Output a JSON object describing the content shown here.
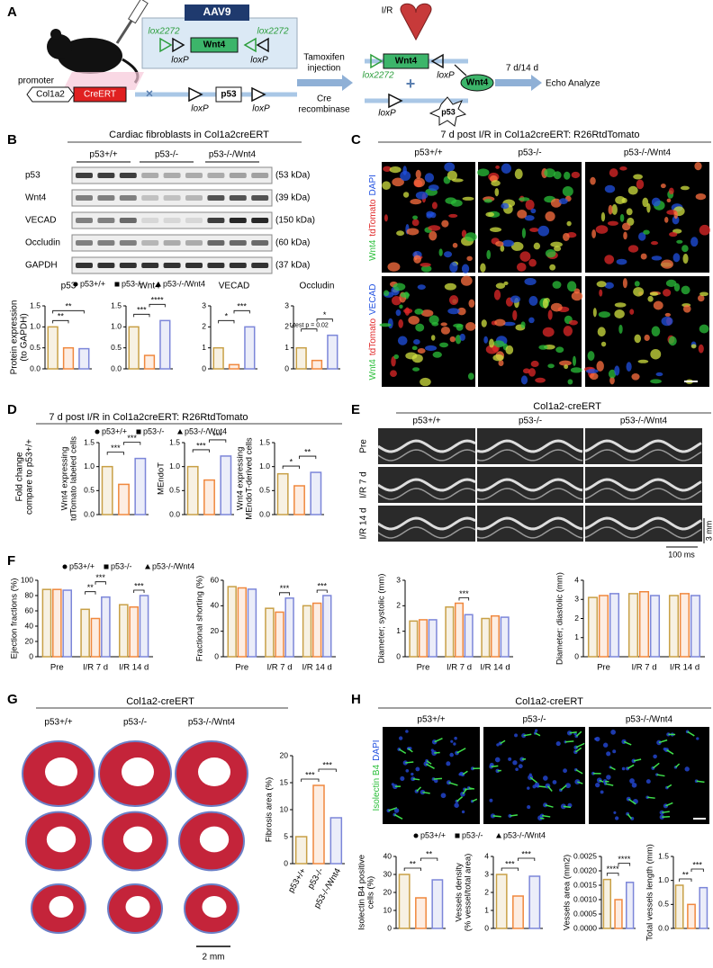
{
  "panels": {
    "A": {
      "label": "A",
      "vector": "AAV9",
      "lox_left": "lox2272",
      "lox_right": "lox2272",
      "gene": "Wnt4",
      "loxp_left": "loxP",
      "loxp_right": "loxP",
      "promoter": "promoter",
      "promoter_name": "Col1a2",
      "driver": "CreERT",
      "target": "p53",
      "target_loxp_left": "loxP",
      "target_loxp_right": "loxP",
      "treatment": [
        "Tamoxifen",
        "injection"
      ],
      "enzyme": [
        "Cre",
        "recombinase"
      ],
      "injury": "I/R",
      "result_lox": "lox2272",
      "result_gene": "Wnt4",
      "result_loxp": "loxP",
      "secreted": "Wnt4",
      "result_target_loxp": "loxP",
      "deleted": "p53",
      "timepoint": "7 d/14 d",
      "analysis": "Echo Analyze"
    },
    "B": {
      "label": "B",
      "title": "Cardiac fibroblasts in Col1a2creERT",
      "groups": [
        "p53+/+",
        "p53-/-",
        "p53-/-/Wnt4"
      ],
      "rows": [
        {
          "name": "p53",
          "size": "(53 kDa)"
        },
        {
          "name": "Wnt4",
          "size": "(39 kDa)"
        },
        {
          "name": "VECAD",
          "size": "(150 kDa)"
        },
        {
          "name": "Occludin",
          "size": "(60 kDa)"
        },
        {
          "name": "GAPDH",
          "size": "(37 kDa)"
        }
      ],
      "legend": [
        "p53+/+",
        "p53-/-",
        "p53-/-/Wnt4"
      ],
      "ylabel": [
        "Protein expression",
        "(to GAPDH)"
      ]
    },
    "C": {
      "label": "C",
      "title": "7 d post I/R in Col1a2creERT: R26RtdTomato",
      "columns": [
        "p53+/+",
        "p53-/-",
        "p53-/-/Wnt4"
      ],
      "row_labels": [
        [
          "Wnt4",
          "tdTomato",
          "DAPI"
        ],
        [
          "Wnt4",
          "tdTomato",
          "VECAD"
        ]
      ]
    },
    "D": {
      "label": "D",
      "title": "7 d post I/R in Col1a2creERT: R26RtdTomato",
      "legend": [
        "p53+/+",
        "p53-/-",
        "p53-/-/Wnt4"
      ],
      "ylabel": [
        "Fold change",
        "compare to p53+/+"
      ]
    },
    "E": {
      "label": "E",
      "title": "Col1a2-creERT",
      "columns": [
        "p53+/+",
        "p53-/-",
        "p53-/-/Wnt4"
      ],
      "rows": [
        "Pre",
        "I/R 7 d",
        "I/R 14 d"
      ],
      "scale_depth": "3 mm",
      "scale_time": "100 ms"
    },
    "F": {
      "label": "F",
      "legend": [
        "p53+/+",
        "p53-/-",
        "p53-/-/Wnt4"
      ]
    },
    "G": {
      "label": "G",
      "title": "Col1a2-creERT",
      "columns": [
        "p53+/+",
        "p53-/-",
        "p53-/-/Wnt4"
      ],
      "scale": "2 mm"
    },
    "H": {
      "label": "H",
      "title": "Col1a2-creERT",
      "columns": [
        "p53+/+",
        "p53-/-",
        "p53-/-/Wnt4"
      ],
      "stain": [
        "Isolectin B4",
        "DAPI"
      ],
      "legend": [
        "p53+/+",
        "p53-/-",
        "p53-/-/Wnt4"
      ]
    }
  },
  "chart_data": [
    {
      "type": "bar",
      "title": "p53",
      "categories": [
        null,
        null,
        null
      ],
      "values": [
        1.0,
        0.5,
        0.48
      ],
      "colors": [
        "#c8a046",
        "#f0883e",
        "#7c86d9"
      ],
      "ylim": [
        0,
        1.5
      ],
      "yticks": [
        {
          "value": 0,
          "label": "0.0"
        },
        0.5,
        {
          "value": 1,
          "label": "1.0"
        },
        1.5
      ],
      "annotations": [
        {
          "label": "**",
          "pair": [
            0,
            1
          ]
        },
        {
          "label": "**",
          "pair": [
            0,
            2
          ]
        }
      ]
    },
    {
      "type": "bar",
      "title": "Wnt4",
      "categories": [
        null,
        null,
        null
      ],
      "values": [
        1.0,
        0.32,
        1.15
      ],
      "colors": [
        "#c8a046",
        "#f0883e",
        "#7c86d9"
      ],
      "ylim": [
        0,
        1.5
      ],
      "yticks": [
        {
          "value": 0,
          "label": "0.0"
        },
        0.5,
        {
          "value": 1,
          "label": "1.0"
        },
        1.5
      ],
      "annotations": [
        {
          "label": "***",
          "pair": [
            0,
            1
          ]
        },
        {
          "label": "****",
          "pair": [
            1,
            2
          ]
        }
      ]
    },
    {
      "type": "bar",
      "title": "VECAD",
      "categories": [
        null,
        null,
        null
      ],
      "values": [
        1.0,
        0.2,
        2.0
      ],
      "colors": [
        "#c8a046",
        "#f0883e",
        "#7c86d9"
      ],
      "ylim": [
        0,
        3
      ],
      "yticks": [
        0,
        1,
        2,
        3
      ],
      "annotations": [
        {
          "label": "*",
          "pair": [
            0,
            1
          ]
        },
        {
          "label": "***",
          "pair": [
            1,
            2
          ]
        }
      ]
    },
    {
      "type": "bar",
      "title": "Occludin",
      "categories": [
        null,
        null,
        null
      ],
      "values": [
        1.0,
        0.4,
        1.6
      ],
      "colors": [
        "#c8a046",
        "#f0883e",
        "#7c86d9"
      ],
      "ylim": [
        0,
        3
      ],
      "yticks": [
        0,
        1,
        2,
        3
      ],
      "annotations": [
        {
          "label": "t-test p = 0.02",
          "pair": [
            0,
            1
          ]
        },
        {
          "label": "*",
          "pair": [
            1,
            2
          ]
        }
      ]
    },
    {
      "type": "bar",
      "ylabel": [
        "Wnt4 expressing",
        "tdTomato labeled cells"
      ],
      "categories": [
        null,
        null,
        null
      ],
      "values": [
        1.0,
        0.63,
        1.17
      ],
      "colors": [
        "#c8a046",
        "#f0883e",
        "#7c86d9"
      ],
      "ylim": [
        0,
        1.5
      ],
      "yticks": [
        {
          "value": 0,
          "label": "0.0"
        },
        0.5,
        {
          "value": 1,
          "label": "1.0"
        },
        1.5
      ],
      "annotations": [
        {
          "label": "***",
          "pair": [
            0,
            1
          ]
        },
        {
          "label": "***",
          "pair": [
            1,
            2
          ]
        }
      ]
    },
    {
      "type": "bar",
      "ylabel": "MEndoT",
      "categories": [
        null,
        null,
        null
      ],
      "values": [
        1.0,
        0.72,
        1.22
      ],
      "colors": [
        "#c8a046",
        "#f0883e",
        "#7c86d9"
      ],
      "ylim": [
        0,
        1.5
      ],
      "yticks": [
        {
          "value": 0,
          "label": "0.0"
        },
        0.5,
        {
          "value": 1,
          "label": "1.0"
        },
        1.5
      ],
      "annotations": [
        {
          "label": "***",
          "pair": [
            0,
            1
          ]
        },
        {
          "label": "***",
          "pair": [
            1,
            2
          ]
        }
      ]
    },
    {
      "type": "bar",
      "ylabel": [
        "Wnt4 expressing",
        "MEndoT-derived cells"
      ],
      "categories": [
        null,
        null,
        null
      ],
      "values": [
        0.85,
        0.6,
        0.88
      ],
      "colors": [
        "#c8a046",
        "#f0883e",
        "#7c86d9"
      ],
      "ylim": [
        0,
        1.5
      ],
      "yticks": [
        {
          "value": 0,
          "label": "0.0"
        },
        0.5,
        {
          "value": 1,
          "label": "1.0"
        },
        1.5
      ],
      "annotations": [
        {
          "label": "*",
          "pair": [
            0,
            1
          ]
        },
        {
          "label": "**",
          "pair": [
            1,
            2
          ]
        }
      ]
    },
    {
      "type": "bar",
      "ylabel": "Ejection fractions (%)",
      "categories": [
        "Pre",
        "I/R 7 d",
        "I/R 14 d"
      ],
      "series": [
        {
          "color": "#c8a046",
          "values": [
            88,
            62,
            68
          ]
        },
        {
          "color": "#f0883e",
          "values": [
            88,
            50,
            65
          ]
        },
        {
          "color": "#7c86d9",
          "values": [
            87,
            78,
            80
          ]
        }
      ],
      "ylim": [
        0,
        100
      ],
      "yticks": [
        0,
        20,
        40,
        60,
        80,
        100
      ],
      "annotations": [
        {
          "label": "**",
          "category": 1,
          "pair": [
            0,
            1
          ]
        },
        {
          "label": "***",
          "category": 1,
          "pair": [
            1,
            2
          ]
        },
        {
          "label": "***",
          "category": 2,
          "pair": [
            1,
            2
          ]
        }
      ]
    },
    {
      "type": "bar",
      "ylabel": "Fractional shorting (%)",
      "categories": [
        "Pre",
        "I/R 7 d",
        "I/R 14 d"
      ],
      "series": [
        {
          "color": "#c8a046",
          "values": [
            55,
            38,
            40
          ]
        },
        {
          "color": "#f0883e",
          "values": [
            54,
            35,
            42
          ]
        },
        {
          "color": "#7c86d9",
          "values": [
            53,
            46,
            48
          ]
        }
      ],
      "ylim": [
        0,
        60
      ],
      "yticks": [
        0,
        20,
        40,
        60
      ],
      "annotations": [
        {
          "label": "***",
          "category": 1,
          "pair": [
            1,
            2
          ]
        },
        {
          "label": "***",
          "category": 2,
          "pair": [
            1,
            2
          ]
        }
      ]
    },
    {
      "type": "bar",
      "ylabel": "Diameter; systolic (mm)",
      "categories": [
        "Pre",
        "I/R 7 d",
        "I/R 14 d"
      ],
      "series": [
        {
          "color": "#c8a046",
          "values": [
            1.4,
            1.95,
            1.5
          ]
        },
        {
          "color": "#f0883e",
          "values": [
            1.45,
            2.1,
            1.6
          ]
        },
        {
          "color": "#7c86d9",
          "values": [
            1.45,
            1.65,
            1.55
          ]
        }
      ],
      "ylim": [
        0,
        3
      ],
      "yticks": [
        0,
        1,
        2,
        3
      ],
      "annotations": [
        {
          "label": "***",
          "category": 1,
          "pair": [
            1,
            2
          ]
        }
      ]
    },
    {
      "type": "bar",
      "ylabel": "Diameter; diastolic (mm)",
      "categories": [
        "Pre",
        "I/R 7 d",
        "I/R 14 d"
      ],
      "series": [
        {
          "color": "#c8a046",
          "values": [
            3.1,
            3.3,
            3.2
          ]
        },
        {
          "color": "#f0883e",
          "values": [
            3.2,
            3.4,
            3.3
          ]
        },
        {
          "color": "#7c86d9",
          "values": [
            3.3,
            3.2,
            3.2
          ]
        }
      ],
      "ylim": [
        0,
        4
      ],
      "yticks": [
        0,
        1,
        2,
        3,
        4
      ],
      "annotations": []
    },
    {
      "type": "bar",
      "ylabel": "Fibrosis area (%)",
      "categories": [
        "p53+/+",
        "p53-/-",
        "p53-/-/Wnt4"
      ],
      "values": [
        5,
        14.5,
        8.5
      ],
      "colors": [
        "#c8a046",
        "#f0883e",
        "#7c86d9"
      ],
      "ylim": [
        0,
        20
      ],
      "yticks": [
        0,
        5,
        10,
        15,
        20
      ],
      "annotations": [
        {
          "label": "***",
          "pair": [
            0,
            1
          ]
        },
        {
          "label": "***",
          "pair": [
            1,
            2
          ]
        }
      ]
    },
    {
      "type": "bar",
      "ylabel": [
        "Isolectin B4 positive",
        "cells (%)"
      ],
      "categories": [
        null,
        null,
        null
      ],
      "values": [
        30,
        17,
        27
      ],
      "colors": [
        "#c8a046",
        "#f0883e",
        "#7c86d9"
      ],
      "ylim": [
        0,
        40
      ],
      "yticks": [
        0,
        10,
        20,
        30,
        40
      ],
      "annotations": [
        {
          "label": "**",
          "pair": [
            0,
            1
          ]
        },
        {
          "label": "**",
          "pair": [
            1,
            2
          ]
        }
      ]
    },
    {
      "type": "bar",
      "ylabel": [
        "Vessels density",
        "(% vessel/total area)"
      ],
      "categories": [
        null,
        null,
        null
      ],
      "values": [
        3.0,
        1.8,
        2.9
      ],
      "colors": [
        "#c8a046",
        "#f0883e",
        "#7c86d9"
      ],
      "ylim": [
        0,
        4
      ],
      "yticks": [
        0,
        1,
        2,
        3,
        4
      ],
      "annotations": [
        {
          "label": "***",
          "pair": [
            0,
            1
          ]
        },
        {
          "label": "***",
          "pair": [
            1,
            2
          ]
        }
      ]
    },
    {
      "type": "bar",
      "ylabel": "Vessels area (mm2)",
      "categories": [
        null,
        null,
        null
      ],
      "values": [
        0.0017,
        0.001,
        0.0016
      ],
      "colors": [
        "#c8a046",
        "#f0883e",
        "#7c86d9"
      ],
      "ylim": [
        0,
        0.0025
      ],
      "yticks": [
        {
          "value": 0,
          "label": "0.0000"
        },
        {
          "value": 0.0005,
          "label": "0.0005"
        },
        {
          "value": 0.001,
          "label": "0.0010"
        },
        {
          "value": 0.0015,
          "label": "0.0015"
        },
        {
          "value": 0.002,
          "label": "0.0020"
        },
        {
          "value": 0.0025,
          "label": "0.0025"
        }
      ],
      "annotations": [
        {
          "label": "****",
          "pair": [
            0,
            1
          ]
        },
        {
          "label": "****",
          "pair": [
            1,
            2
          ]
        }
      ]
    },
    {
      "type": "bar",
      "ylabel": "Total vessels length (mm)",
      "categories": [
        null,
        null,
        null
      ],
      "values": [
        0.9,
        0.5,
        0.85
      ],
      "colors": [
        "#c8a046",
        "#f0883e",
        "#7c86d9"
      ],
      "ylim": [
        0,
        1.5
      ],
      "yticks": [
        {
          "value": 0,
          "label": "0.0"
        },
        0.5,
        {
          "value": 1,
          "label": "1.0"
        },
        1.5
      ],
      "annotations": [
        {
          "label": "**",
          "pair": [
            0,
            1
          ]
        },
        {
          "label": "***",
          "pair": [
            1,
            2
          ]
        }
      ]
    }
  ]
}
